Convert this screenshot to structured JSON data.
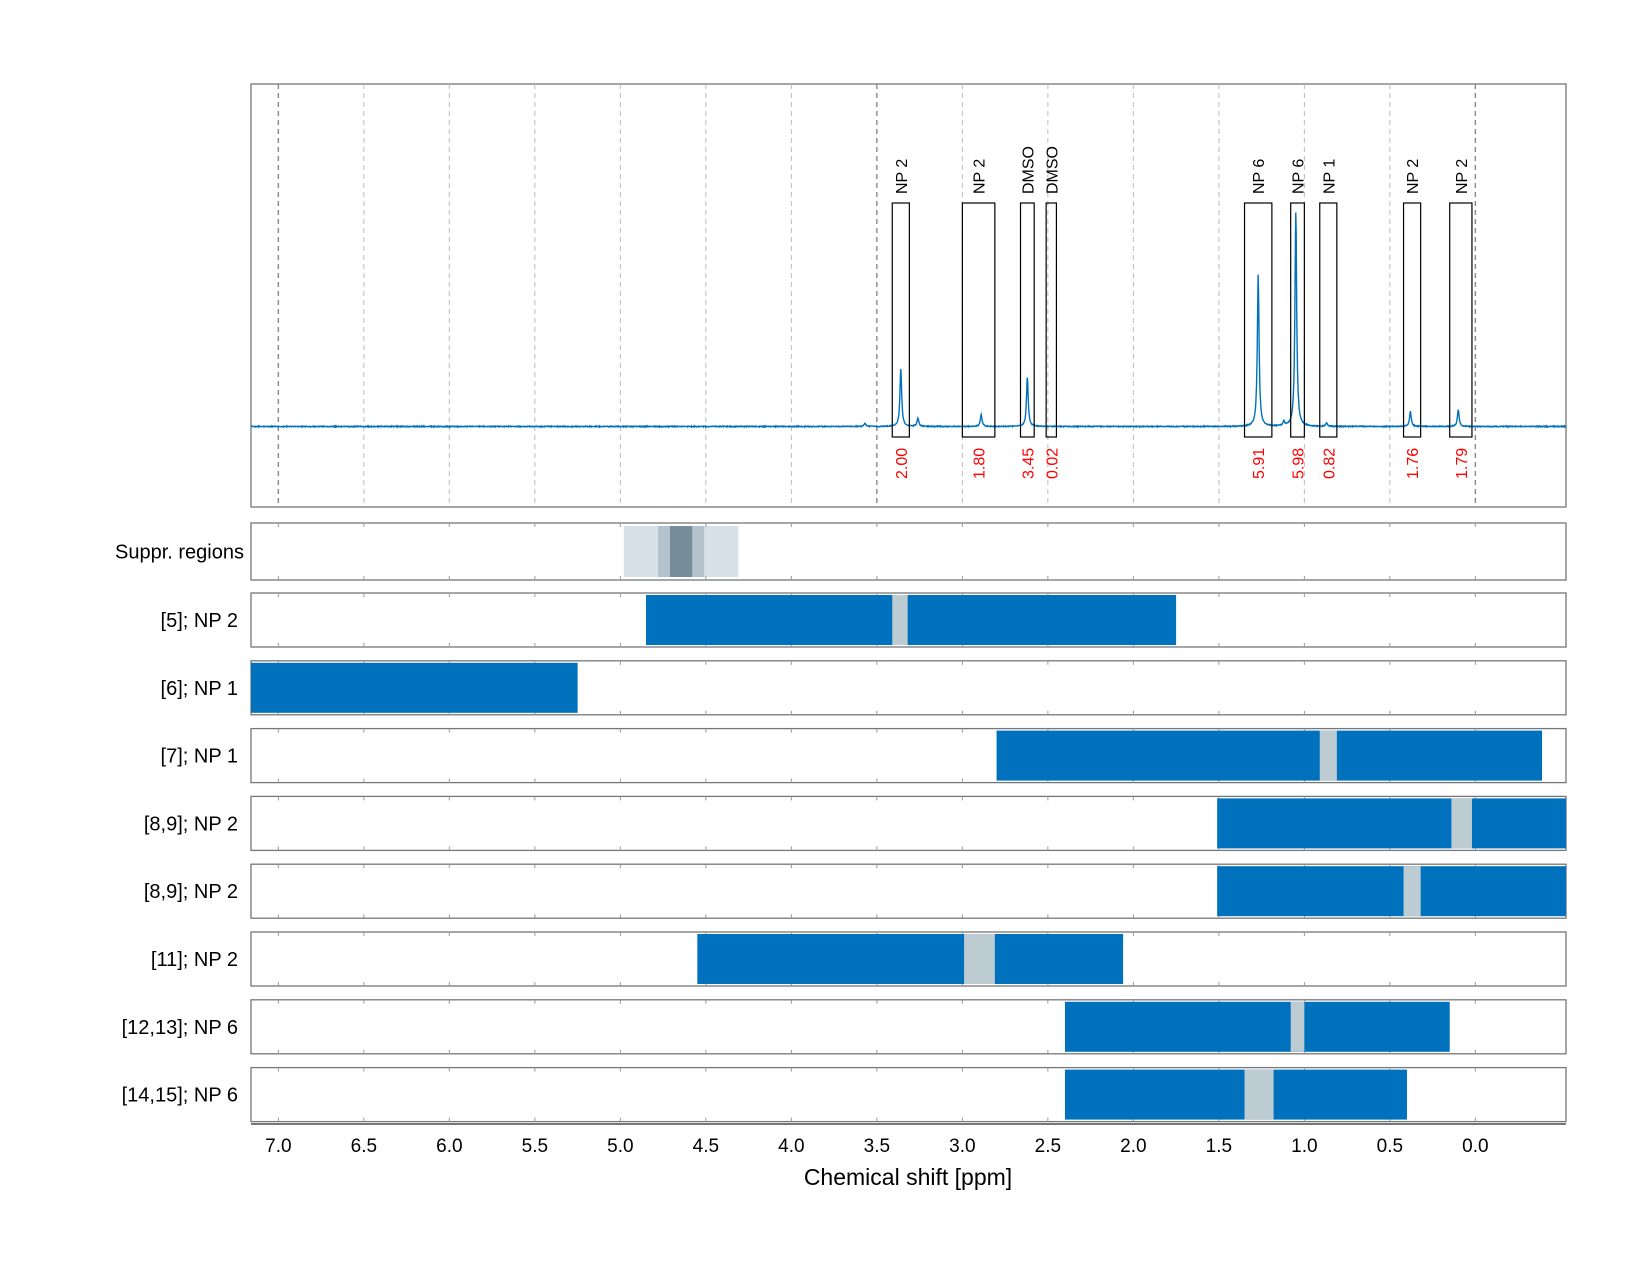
{
  "chart_data": {
    "type": "line",
    "xlabel": "Chemical shift [ppm]",
    "xlim": [
      7.16,
      -0.53
    ],
    "x_reversed": true,
    "x_ticks": [
      "7.0",
      "6.5",
      "6.0",
      "5.5",
      "5.0",
      "4.5",
      "4.0",
      "3.5",
      "3.0",
      "2.5",
      "2.0",
      "1.5",
      "1.0",
      "0.5",
      "0.0"
    ],
    "grid": "vertical dashed",
    "colors": {
      "spectrum": "#0072bd",
      "bar": "#0072bd",
      "gap": "#bdcbd3",
      "box": "#000000",
      "integral": "#ff0000"
    },
    "spectrum": {
      "baseline": 0,
      "peaks": [
        {
          "ppm": 3.57,
          "height": 0.015
        },
        {
          "ppm": 3.36,
          "height": 0.27
        },
        {
          "ppm": 3.26,
          "height": 0.04
        },
        {
          "ppm": 2.89,
          "height": 0.055
        },
        {
          "ppm": 2.62,
          "height": 0.23
        },
        {
          "ppm": 1.27,
          "height": 0.71
        },
        {
          "ppm": 1.12,
          "height": 0.02
        },
        {
          "ppm": 1.05,
          "height": 1.0
        },
        {
          "ppm": 0.87,
          "height": 0.015
        },
        {
          "ppm": 0.38,
          "height": 0.07
        },
        {
          "ppm": 0.1,
          "height": 0.08
        }
      ]
    },
    "annotations": [
      {
        "label": "NP 2",
        "from": 3.41,
        "to": 3.31,
        "integral": "2.00"
      },
      {
        "label": "NP 2",
        "from": 3.0,
        "to": 2.81,
        "integral": "1.80"
      },
      {
        "label": "DMSO",
        "from": 2.66,
        "to": 2.58,
        "integral": "3.45"
      },
      {
        "label": "DMSO",
        "from": 2.51,
        "to": 2.45,
        "integral": "0.02"
      },
      {
        "label": "NP 6",
        "from": 1.35,
        "to": 1.19,
        "integral": "5.91"
      },
      {
        "label": "NP 6",
        "from": 1.08,
        "to": 1.0,
        "integral": "5.98"
      },
      {
        "label": "NP 1",
        "from": 0.91,
        "to": 0.81,
        "integral": "0.82"
      },
      {
        "label": "NP 2",
        "from": 0.42,
        "to": 0.32,
        "integral": "1.76"
      },
      {
        "label": "NP 2",
        "from": 0.15,
        "to": 0.02,
        "integral": "1.79"
      }
    ],
    "suppressed_regions": {
      "label": "Suppr. regions",
      "bands": [
        {
          "from": 4.98,
          "to": 4.31,
          "color": "#d8e1e8"
        },
        {
          "from": 4.78,
          "to": 4.51,
          "color": "#b3c2cc"
        },
        {
          "from": 4.71,
          "to": 4.58,
          "color": "#778c99"
        }
      ]
    },
    "rows": [
      {
        "label": "[5]; NP 2",
        "from": 4.85,
        "to": 1.75,
        "gap": [
          3.41,
          3.32
        ]
      },
      {
        "label": "[6]; NP 1",
        "from": 7.16,
        "to": 5.25,
        "gap": null
      },
      {
        "label": "[7]; NP 1",
        "from": 2.8,
        "to": -0.39,
        "gap": [
          0.91,
          0.81
        ]
      },
      {
        "label": "[8,9]; NP 2",
        "from": 1.51,
        "to": -0.53,
        "gap": [
          0.14,
          0.02
        ]
      },
      {
        "label": "[8,9]; NP 2",
        "from": 1.51,
        "to": -0.53,
        "gap": [
          0.42,
          0.32
        ]
      },
      {
        "label": "[11]; NP 2",
        "from": 4.55,
        "to": 2.06,
        "gap": [
          2.99,
          2.81
        ]
      },
      {
        "label": "[12,13]; NP 6",
        "from": 2.4,
        "to": 0.15,
        "gap": [
          1.08,
          1.0
        ]
      },
      {
        "label": "[14,15]; NP 6",
        "from": 2.4,
        "to": 0.4,
        "gap": [
          1.35,
          1.18
        ]
      }
    ]
  }
}
